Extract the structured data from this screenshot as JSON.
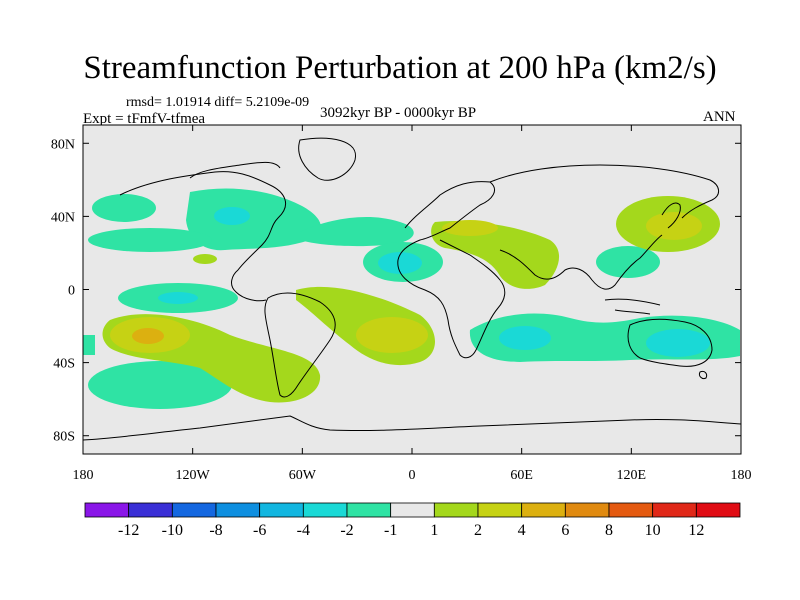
{
  "title": "Streamfunction Perturbation at 200 hPa (km2/s)",
  "stats": "rmsd= 1.01914 diff= 5.2109e-09",
  "experiment": "Expt = tFmfV-tfmea",
  "period": "3092kyr BP - 0000kyr BP",
  "season": "ANN",
  "lat_ticks": [
    {
      "value": 80,
      "label": "80N"
    },
    {
      "value": 40,
      "label": "40N"
    },
    {
      "value": 0,
      "label": "0"
    },
    {
      "value": -40,
      "label": "40S"
    },
    {
      "value": -80,
      "label": "80S"
    }
  ],
  "lon_ticks": [
    {
      "value": -180,
      "label": "180"
    },
    {
      "value": -120,
      "label": "120W"
    },
    {
      "value": -60,
      "label": "60W"
    },
    {
      "value": 0,
      "label": "0"
    },
    {
      "value": 60,
      "label": "60E"
    },
    {
      "value": 120,
      "label": "120E"
    },
    {
      "value": 180,
      "label": "180"
    }
  ],
  "colorbar": {
    "levels": [
      "-12",
      "-10",
      "-8",
      "-6",
      "-4",
      "-2",
      "-1",
      "1",
      "2",
      "4",
      "6",
      "8",
      "10",
      "12"
    ],
    "colors": [
      "#8a16e8",
      "#3a2fd6",
      "#1467e0",
      "#0e8fe0",
      "#12b6e0",
      "#1ad9d6",
      "#2fe3a4",
      "#e8e8e8",
      "#a4d81c",
      "#c6d214",
      "#dcb010",
      "#e08a10",
      "#e45a10",
      "#e02818",
      "#e00c14"
    ]
  },
  "chart_data": {
    "type": "map_contour",
    "variable": "Streamfunction Perturbation at 200 hPa (km2/s)",
    "lon_range": [
      -180,
      180
    ],
    "lat_range": [
      -90,
      90
    ],
    "anomaly_regions": [
      {
        "name": "north-pacific-east",
        "lon": -150,
        "lat": 48,
        "level": "-1"
      },
      {
        "name": "north-america",
        "lon": -100,
        "lat": 40,
        "level": "-2"
      },
      {
        "name": "north-atlantic",
        "lon": -50,
        "lat": 30,
        "level": "1"
      },
      {
        "name": "west-africa",
        "lon": -5,
        "lat": 15,
        "level": "-2"
      },
      {
        "name": "south-atlantic",
        "lon": -20,
        "lat": -20,
        "level": "2"
      },
      {
        "name": "south-america",
        "lon": -75,
        "lat": -40,
        "level": "1"
      },
      {
        "name": "south-pacific",
        "lon": -145,
        "lat": -22,
        "level": "4"
      },
      {
        "name": "east-pacific-south",
        "lon": -120,
        "lat": -55,
        "level": "-1"
      },
      {
        "name": "equatorial-pacific",
        "lon": -135,
        "lat": 5,
        "level": "-1"
      },
      {
        "name": "mediterranean",
        "lon": 40,
        "lat": 35,
        "level": "1"
      },
      {
        "name": "north-pacific-west",
        "lon": 150,
        "lat": 40,
        "level": "4"
      },
      {
        "name": "south-china",
        "lon": 120,
        "lat": 20,
        "level": "-1"
      },
      {
        "name": "indian-ocean",
        "lon": 65,
        "lat": -22,
        "level": "-2"
      },
      {
        "name": "australia",
        "lon": 145,
        "lat": -25,
        "level": "-2"
      }
    ]
  }
}
